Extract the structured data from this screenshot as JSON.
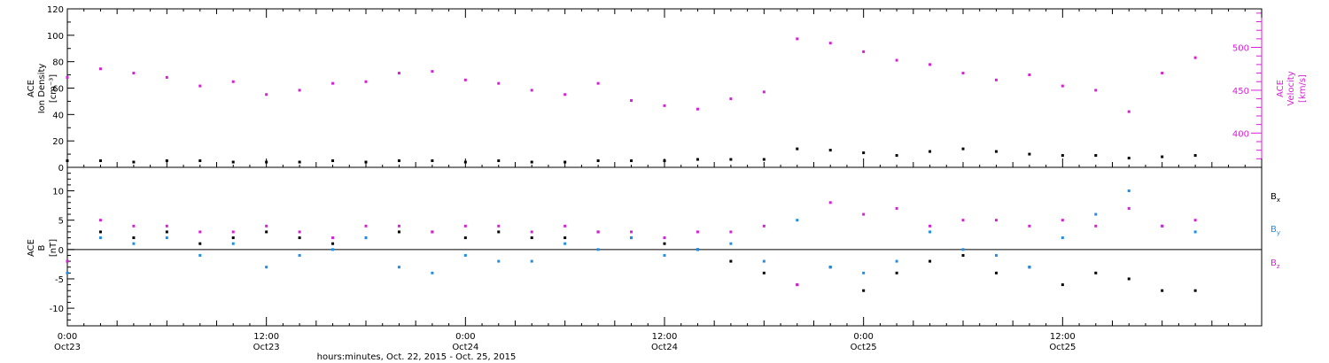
{
  "colors": {
    "black": "#000000",
    "magenta": "#d81fd8",
    "blue": "#1f8ee6"
  },
  "chart_data": [
    {
      "type": "scatter",
      "panel": "density-velocity",
      "ylabel_left_lines": [
        "ACE",
        "Ion Density",
        "[cm⁻³]"
      ],
      "ylabel_right_lines": [
        "ACE",
        "Velocity",
        "[km/s]"
      ],
      "ylim_left": [
        0,
        120
      ],
      "ylim_right": [
        360,
        545
      ],
      "yticks_left": [
        0,
        20,
        40,
        60,
        80,
        100,
        120
      ],
      "yticks_right": [
        400,
        450,
        500
      ],
      "series": [
        {
          "axis": "left",
          "color": "black",
          "x": [
            0,
            2,
            4,
            6,
            8,
            10,
            12,
            14,
            16,
            18,
            20,
            22,
            24,
            26,
            28,
            30,
            32,
            34,
            36,
            38,
            40,
            42,
            44,
            46,
            48,
            50,
            52,
            54,
            56,
            58,
            60,
            62,
            64,
            66,
            68
          ],
          "values": [
            5,
            5,
            4,
            5,
            5,
            4,
            4,
            4,
            5,
            4,
            5,
            5,
            4,
            5,
            4,
            4,
            5,
            5,
            5,
            6,
            6,
            6,
            14,
            13,
            11,
            9,
            12,
            14,
            12,
            10,
            9,
            9,
            7,
            8,
            9
          ]
        },
        {
          "axis": "right",
          "color": "magenta",
          "x": [
            0,
            2,
            4,
            6,
            8,
            10,
            12,
            14,
            16,
            18,
            20,
            22,
            24,
            26,
            28,
            30,
            32,
            34,
            36,
            38,
            40,
            42,
            44,
            46,
            48,
            50,
            52,
            54,
            56,
            58,
            60,
            62,
            64,
            66,
            68
          ],
          "values": [
            465,
            475,
            470,
            465,
            455,
            460,
            445,
            450,
            458,
            460,
            470,
            472,
            462,
            458,
            450,
            445,
            458,
            438,
            432,
            428,
            440,
            448,
            510,
            505,
            495,
            485,
            480,
            470,
            462,
            468,
            455,
            450,
            425,
            470,
            488
          ]
        }
      ]
    },
    {
      "type": "scatter",
      "panel": "magnetic-field",
      "ylabel_lines": [
        "ACE",
        "B",
        "[nT]"
      ],
      "ylim": [
        -13,
        14
      ],
      "yticks": [
        -10,
        -5,
        0,
        5,
        10
      ],
      "xlabel": "hours:minutes, Oct. 22, 2015 - Oct. 25, 2015",
      "xlim": [
        0,
        72
      ],
      "xticks": [
        {
          "x": 0,
          "time": "0:00",
          "date": "Oct23"
        },
        {
          "x": 12,
          "time": "12:00",
          "date": "Oct23"
        },
        {
          "x": 24,
          "time": "0:00",
          "date": "Oct24"
        },
        {
          "x": 36,
          "time": "12:00",
          "date": "Oct24"
        },
        {
          "x": 48,
          "time": "0:00",
          "date": "Oct25"
        },
        {
          "x": 60,
          "time": "12:00",
          "date": "Oct25"
        }
      ],
      "series": [
        {
          "name": "B",
          "subscript": "x",
          "color": "black",
          "x": [
            0,
            2,
            4,
            6,
            8,
            10,
            12,
            14,
            16,
            18,
            20,
            22,
            24,
            26,
            28,
            30,
            32,
            34,
            36,
            38,
            40,
            42,
            44,
            46,
            48,
            50,
            52,
            54,
            56,
            58,
            60,
            62,
            64,
            66,
            68
          ],
          "values": [
            -2,
            3,
            2,
            3,
            1,
            2,
            3,
            2,
            1,
            2,
            3,
            3,
            2,
            3,
            2,
            2,
            3,
            2,
            1,
            0,
            -2,
            -4,
            -6,
            -3,
            -7,
            -4,
            -2,
            -1,
            -4,
            -3,
            -6,
            -4,
            -5,
            -7,
            -7
          ]
        },
        {
          "name": "B",
          "subscript": "y",
          "color": "blue",
          "x": [
            0,
            2,
            4,
            6,
            8,
            10,
            12,
            14,
            16,
            18,
            20,
            22,
            24,
            26,
            28,
            30,
            32,
            34,
            36,
            38,
            40,
            42,
            44,
            46,
            48,
            50,
            52,
            54,
            56,
            58,
            60,
            62,
            64,
            66,
            68
          ],
          "values": [
            -4,
            2,
            1,
            2,
            -1,
            1,
            -3,
            -1,
            0,
            2,
            -3,
            -4,
            -1,
            -2,
            -2,
            1,
            0,
            2,
            -1,
            0,
            1,
            -2,
            5,
            -3,
            -4,
            -2,
            3,
            0,
            -1,
            -3,
            2,
            6,
            10,
            4,
            3
          ]
        },
        {
          "name": "B",
          "subscript": "z",
          "color": "magenta",
          "x": [
            0,
            2,
            4,
            6,
            8,
            10,
            12,
            14,
            16,
            18,
            20,
            22,
            24,
            26,
            28,
            30,
            32,
            34,
            36,
            38,
            40,
            42,
            44,
            46,
            48,
            50,
            52,
            54,
            56,
            58,
            60,
            62,
            64,
            66,
            68
          ],
          "values": [
            -2,
            5,
            4,
            4,
            3,
            3,
            4,
            3,
            2,
            4,
            4,
            3,
            4,
            4,
            3,
            4,
            3,
            3,
            2,
            3,
            3,
            4,
            -6,
            8,
            6,
            7,
            4,
            5,
            5,
            4,
            5,
            4,
            7,
            4,
            5
          ]
        }
      ]
    }
  ]
}
